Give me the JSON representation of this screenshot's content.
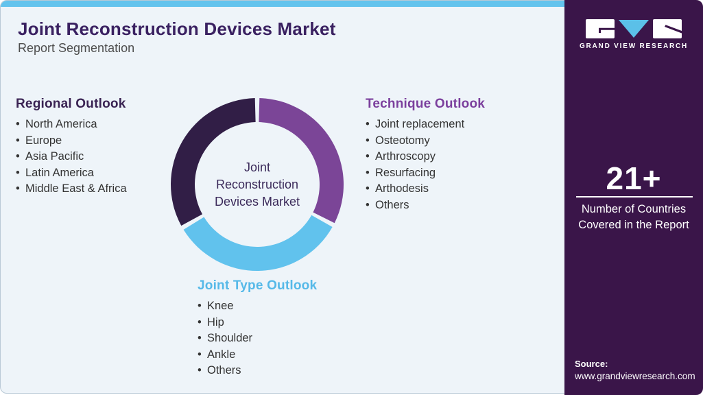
{
  "header": {
    "title": "Joint Reconstruction Devices Market",
    "subtitle": "Report Segmentation"
  },
  "outlooks": {
    "regional": {
      "heading": "Regional Outlook",
      "accent": "#3a2353",
      "items": [
        "North America",
        "Europe",
        "Asia Pacific",
        "Latin America",
        "Middle East & Africa"
      ]
    },
    "technique": {
      "heading": "Technique Outlook",
      "accent": "#7b3f9d",
      "items": [
        "Joint replacement",
        "Osteotomy",
        "Arthroscopy",
        "Resurfacing",
        "Arthodesis",
        "Others"
      ]
    },
    "joint_type": {
      "heading": "Joint Type Outlook",
      "accent": "#56b9e8",
      "items": [
        "Knee",
        "Hip",
        "Shoulder",
        "Ankle",
        "Others"
      ]
    }
  },
  "chart_data": {
    "type": "pie",
    "donut": true,
    "gap_deg": 3,
    "outer_radius": 126,
    "inner_radius": 91,
    "center_label": {
      "line1": "Joint",
      "line2": "Reconstruction",
      "line3": "Devices Market"
    },
    "segments": [
      {
        "label": "Technique Outlook",
        "value": 33,
        "color": "#7b4597",
        "start_deg": 0,
        "end_deg": 118
      },
      {
        "label": "Joint Type Outlook",
        "value": 34,
        "color": "#61c2ed",
        "start_deg": 118,
        "end_deg": 240
      },
      {
        "label": "Regional Outlook",
        "value": 33,
        "color": "#311e46",
        "start_deg": 240,
        "end_deg": 360
      }
    ]
  },
  "sidebar": {
    "logo_text": "GRAND VIEW RESEARCH",
    "stat_value": "21+",
    "stat_caption": "Number of Countries Covered in the Report",
    "source_label": "Source:",
    "source_url": "www.grandviewresearch.com"
  },
  "colors": {
    "card_background": "#eef4f9",
    "top_strip": "#63c3ed",
    "title": "#3a2161",
    "body_text": "#333333",
    "sidebar_background": "#3a1549",
    "logo_triangle": "#5bc0e8",
    "donut_dark": "#311e46",
    "donut_purple": "#7b4597",
    "donut_blue": "#61c2ed"
  }
}
